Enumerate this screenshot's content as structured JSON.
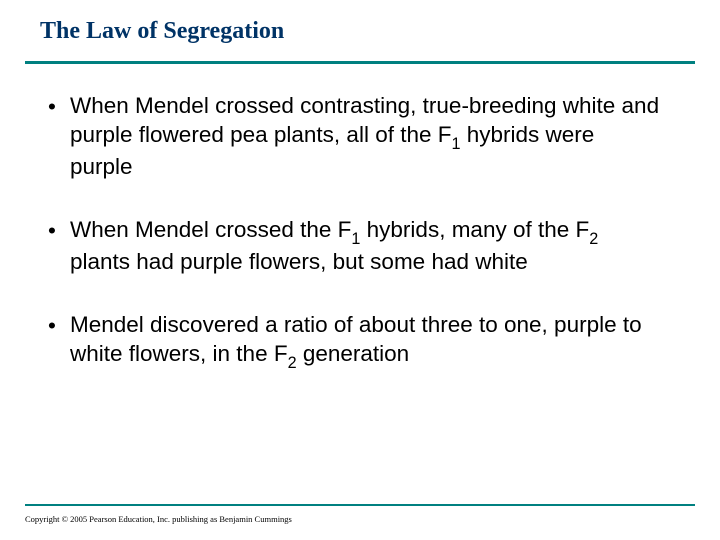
{
  "title": "The Law of Segregation",
  "title_color": "#003366",
  "divider_color": "#008080",
  "text_color": "#000000",
  "background_color": "#ffffff",
  "title_fontsize": 24,
  "body_fontsize": 22.5,
  "bullets": [
    {
      "segments": [
        {
          "text": "When Mendel crossed contrasting, true-breeding white and purple flowered pea plants, all of the F",
          "sub": false
        },
        {
          "text": "1",
          "sub": true
        },
        {
          "text": " hybrids were purple",
          "sub": false
        }
      ]
    },
    {
      "segments": [
        {
          "text": "When Mendel crossed the F",
          "sub": false
        },
        {
          "text": "1",
          "sub": true
        },
        {
          "text": " hybrids, many of the F",
          "sub": false
        },
        {
          "text": "2",
          "sub": true
        },
        {
          "text": " plants had purple flowers, but some had white",
          "sub": false
        }
      ]
    },
    {
      "segments": [
        {
          "text": "Mendel discovered a ratio of about three to one, purple to white flowers, in the F",
          "sub": false
        },
        {
          "text": "2",
          "sub": true
        },
        {
          "text": " generation",
          "sub": false
        }
      ]
    }
  ],
  "copyright": "Copyright © 2005 Pearson Education, Inc. publishing as Benjamin Cummings",
  "bullet_marker": "•"
}
